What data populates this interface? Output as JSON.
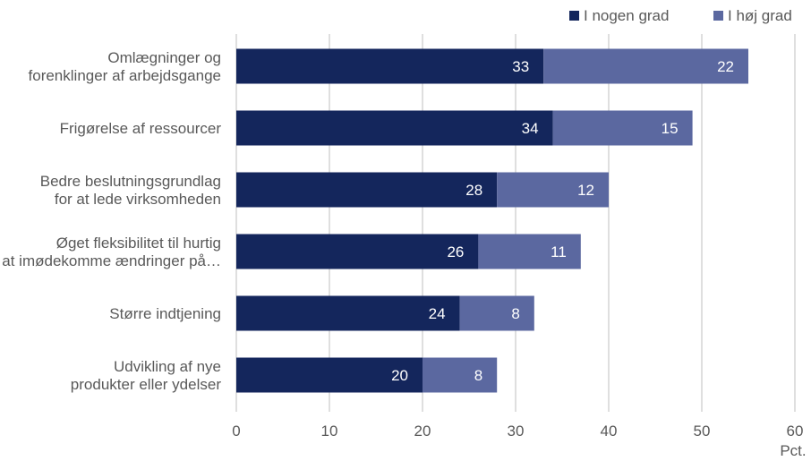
{
  "chart_data": {
    "type": "bar",
    "orientation": "horizontal",
    "stacked": true,
    "categories": [
      [
        "Omlægninger og",
        "forenklinger af arbejdsgange"
      ],
      [
        "Frigørelse af ressourcer"
      ],
      [
        "Bedre beslutningsgrundlag",
        "for at lede virksomheden"
      ],
      [
        "Øget fleksibilitet til hurtig",
        "at imødekomme ændringer på…"
      ],
      [
        "Større indtjening"
      ],
      [
        "Udvikling af nye",
        "produkter eller ydelser"
      ]
    ],
    "series": [
      {
        "name": "I nogen grad",
        "color": "#14265c",
        "values": [
          33,
          34,
          28,
          26,
          24,
          20
        ]
      },
      {
        "name": "I høj grad",
        "color": "#5b68a0",
        "values": [
          22,
          15,
          12,
          11,
          8,
          8
        ]
      }
    ],
    "xlim": [
      0,
      60
    ],
    "xticks": [
      "0",
      "10",
      "20",
      "30",
      "40",
      "50",
      "60"
    ],
    "xunit": "Pct.",
    "legend_position": "top-right",
    "grid": true
  }
}
